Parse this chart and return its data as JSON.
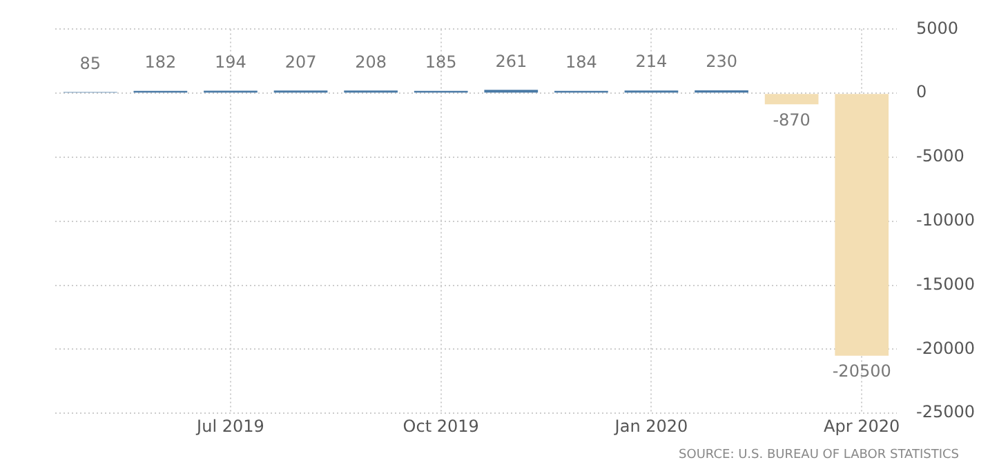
{
  "chart_data": {
    "type": "bar",
    "categories": [
      null,
      null,
      "Jul 2019",
      null,
      null,
      "Oct 2019",
      null,
      null,
      "Jan 2020",
      null,
      null,
      "Apr 2020"
    ],
    "values": [
      85,
      182,
      194,
      207,
      208,
      185,
      261,
      184,
      214,
      230,
      -870,
      -20500
    ],
    "colors": [
      "#4a7aa6",
      "#4a7aa6",
      "#4a7aa6",
      "#4a7aa6",
      "#4a7aa6",
      "#4a7aa6",
      "#4a7aa6",
      "#4a7aa6",
      "#4a7aa6",
      "#4a7aa6",
      "#f3deb3",
      "#f3deb3"
    ],
    "ylim": [
      -25000,
      5000
    ],
    "yticks": [
      5000,
      0,
      -5000,
      -10000,
      -15000,
      -20000,
      -25000
    ],
    "grid": true,
    "legend": false,
    "data_labels": true,
    "annotations": [
      "SOURCE: U.S. BUREAU OF LABOR STATISTICS"
    ]
  }
}
